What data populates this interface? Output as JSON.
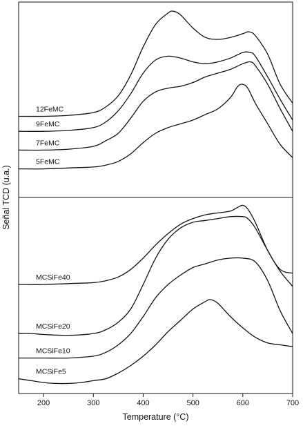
{
  "chart_data": {
    "type": "line",
    "xlabel": "Temperature (°C)",
    "ylabel": "Señal TCD (u.a.)",
    "xlim": [
      150,
      700
    ],
    "xticks": [
      200,
      300,
      400,
      500,
      600,
      700
    ],
    "panels": [
      {
        "name": "top",
        "ylim": [
          0,
          100
        ],
        "series": [
          {
            "name": "12FeMC",
            "x": [
              150,
              200,
              250,
              300,
              325,
              350,
              375,
              400,
              425,
              450,
              460,
              475,
              500,
              525,
              550,
              575,
              600,
              612,
              625,
              650,
              675,
              700
            ],
            "y": [
              41,
              41,
              41.5,
              43,
              46,
              52,
              63,
              78,
              90,
              96,
              97,
              95,
              88,
              83,
              82,
              83,
              85,
              86,
              84,
              74,
              58,
              48
            ]
          },
          {
            "name": "9FeMC",
            "x": [
              150,
              200,
              250,
              300,
              325,
              350,
              375,
              400,
              425,
              450,
              475,
              500,
              525,
              550,
              575,
              600,
              615,
              625,
              650,
              675,
              700
            ],
            "y": [
              33,
              33,
              33.5,
              35,
              38,
              44,
              53,
              64,
              71,
              73,
              72,
              70,
              69,
              70,
              72,
              75,
              75,
              73,
              62,
              50,
              39
            ]
          },
          {
            "name": "7FeMC",
            "x": [
              150,
              200,
              250,
              300,
              325,
              350,
              375,
              400,
              425,
              450,
              475,
              500,
              525,
              550,
              575,
              600,
              615,
              625,
              650,
              675,
              700
            ],
            "y": [
              23,
              23,
              23.5,
              25,
              28,
              32,
              40,
              49,
              54,
              56,
              57,
              59,
              62,
              64,
              66,
              69,
              70,
              68,
              58,
              45,
              33
            ]
          },
          {
            "name": "5FeMC",
            "x": [
              150,
              200,
              250,
              300,
              325,
              350,
              375,
              400,
              425,
              450,
              475,
              500,
              525,
              550,
              575,
              590,
              600,
              610,
              625,
              650,
              675,
              700
            ],
            "y": [
              13,
              13,
              13.5,
              14,
              15,
              17,
              21,
              27,
              32,
              35,
              37,
              39,
              42,
              45,
              51,
              57,
              58,
              56,
              48,
              37,
              26,
              19
            ]
          }
        ]
      },
      {
        "name": "bottom",
        "ylim": [
          0,
          100
        ],
        "series": [
          {
            "name": "MCSiFe40",
            "x": [
              150,
              200,
              250,
              300,
              325,
              350,
              375,
              400,
              425,
              450,
              475,
              500,
              525,
              550,
              575,
              590,
              600,
              610,
              625,
              650,
              675,
              700
            ],
            "y": [
              56,
              56,
              56.5,
              57,
              58,
              60,
              64,
              70,
              77,
              83,
              88,
              91,
              93,
              94,
              95,
              97,
              98,
              96,
              89,
              74,
              64,
              62
            ]
          },
          {
            "name": "MCSiFe20",
            "x": [
              150,
              175,
              200,
              250,
              300,
              325,
              350,
              375,
              400,
              425,
              450,
              475,
              500,
              525,
              550,
              575,
              600,
              610,
              625,
              650,
              675,
              700
            ],
            "y": [
              30,
              30,
              29.5,
              29,
              30,
              32,
              36,
              43,
              56,
              70,
              80,
              86,
              89,
              90,
              91,
              92,
              92,
              91,
              86,
              74,
              63,
              55
            ]
          },
          {
            "name": "MCSiFe10",
            "x": [
              150,
              200,
              250,
              300,
              325,
              350,
              375,
              400,
              425,
              450,
              475,
              500,
              525,
              550,
              575,
              600,
              625,
              650,
              675,
              700
            ],
            "y": [
              17,
              17,
              17,
              18,
              20,
              24,
              30,
              39,
              49,
              56,
              61,
              65,
              67,
              69,
              70,
              70,
              68,
              58,
              42,
              30
            ]
          },
          {
            "name": "MCSiFe5",
            "x": [
              150,
              175,
              200,
              225,
              250,
              275,
              300,
              325,
              350,
              375,
              400,
              425,
              450,
              475,
              500,
              525,
              535,
              550,
              575,
              600,
              625,
              650,
              675,
              700
            ],
            "y": [
              6,
              5,
              4,
              3.5,
              3.5,
              4,
              5,
              6,
              9,
              13,
              18,
              24,
              31,
              37,
              43,
              47,
              48,
              46,
              39,
              33,
              28,
              25,
              24,
              23
            ]
          }
        ]
      }
    ]
  }
}
